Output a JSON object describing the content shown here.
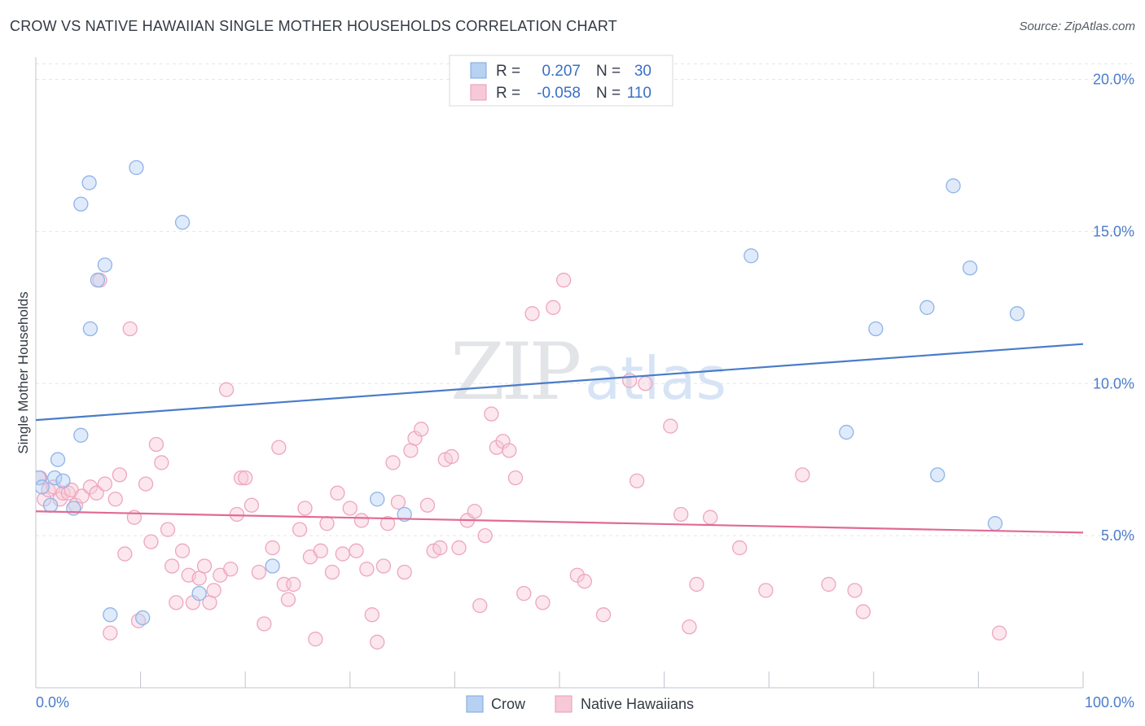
{
  "title": "CROW VS NATIVE HAWAIIAN SINGLE MOTHER HOUSEHOLDS CORRELATION CHART",
  "source": "Source: ZipAtlas.com",
  "watermark": {
    "zip": "ZIP",
    "atlas": "atlas"
  },
  "legend": {
    "rows": [
      {
        "r_label": "R =",
        "r_value": "0.207",
        "n_label": "N =",
        "n_value": "30",
        "color": "#9ec2f0"
      },
      {
        "r_label": "R =",
        "r_value": "-0.058",
        "n_label": "N =",
        "n_value": "110",
        "color": "#f4b6c8"
      }
    ]
  },
  "bottom_legend": [
    {
      "label": "Crow",
      "color": "#9ec2f0"
    },
    {
      "label": "Native Hawaiians",
      "color": "#f4b6c8"
    }
  ],
  "chart_data": {
    "type": "scatter",
    "title": "CROW VS NATIVE HAWAIIAN SINGLE MOTHER HOUSEHOLDS CORRELATION CHART",
    "xlabel": "",
    "ylabel": "Single Mother Households",
    "xlim": [
      0,
      100
    ],
    "ylim": [
      0,
      20
    ],
    "x_tick_labels": [
      "0.0%",
      "100.0%"
    ],
    "y_ticks": [
      5,
      10,
      15,
      20
    ],
    "y_tick_labels": [
      "5.0%",
      "10.0%",
      "15.0%",
      "20.0%"
    ],
    "grid": true,
    "series": [
      {
        "name": "Crow",
        "color": "#4a7cc9",
        "fill": "#b7d1f3",
        "trend": [
          [
            0,
            8.8
          ],
          [
            100,
            11.3
          ]
        ],
        "points": [
          [
            0.3,
            6.9
          ],
          [
            0.6,
            6.6
          ],
          [
            1.4,
            6.0
          ],
          [
            1.8,
            6.9
          ],
          [
            2.1,
            7.5
          ],
          [
            2.6,
            6.8
          ],
          [
            3.6,
            5.9
          ],
          [
            4.3,
            8.3
          ],
          [
            4.3,
            15.9
          ],
          [
            5.1,
            16.6
          ],
          [
            5.2,
            11.8
          ],
          [
            5.9,
            13.4
          ],
          [
            6.6,
            13.9
          ],
          [
            7.1,
            2.4
          ],
          [
            9.6,
            17.1
          ],
          [
            10.2,
            2.3
          ],
          [
            14.0,
            15.3
          ],
          [
            15.6,
            3.1
          ],
          [
            22.6,
            4.0
          ],
          [
            32.6,
            6.2
          ],
          [
            35.2,
            5.7
          ],
          [
            68.3,
            14.2
          ],
          [
            77.4,
            8.4
          ],
          [
            80.2,
            11.8
          ],
          [
            85.1,
            12.5
          ],
          [
            86.1,
            7.0
          ],
          [
            87.6,
            16.5
          ],
          [
            89.2,
            13.8
          ],
          [
            91.6,
            5.4
          ],
          [
            93.7,
            12.3
          ]
        ]
      },
      {
        "name": "Native Hawaiians",
        "color": "#e06a94",
        "fill": "#f7c9d8",
        "trend": [
          [
            0,
            5.8
          ],
          [
            100,
            5.1
          ]
        ],
        "points": [
          [
            0.4,
            6.9
          ],
          [
            0.8,
            6.2
          ],
          [
            1.2,
            6.5
          ],
          [
            1.7,
            6.6
          ],
          [
            2.3,
            6.2
          ],
          [
            2.6,
            6.4
          ],
          [
            3.1,
            6.4
          ],
          [
            3.4,
            6.5
          ],
          [
            3.8,
            6.0
          ],
          [
            4.4,
            6.3
          ],
          [
            5.2,
            6.6
          ],
          [
            5.8,
            6.4
          ],
          [
            6.1,
            13.4
          ],
          [
            6.6,
            6.7
          ],
          [
            7.1,
            1.8
          ],
          [
            7.6,
            6.2
          ],
          [
            8.0,
            7.0
          ],
          [
            8.5,
            4.4
          ],
          [
            9.0,
            11.8
          ],
          [
            9.4,
            5.6
          ],
          [
            9.8,
            2.2
          ],
          [
            10.5,
            6.7
          ],
          [
            11.0,
            4.8
          ],
          [
            11.5,
            8.0
          ],
          [
            12.0,
            7.4
          ],
          [
            12.6,
            5.2
          ],
          [
            13.0,
            4.0
          ],
          [
            13.4,
            2.8
          ],
          [
            14.0,
            4.5
          ],
          [
            14.6,
            3.7
          ],
          [
            15.0,
            2.8
          ],
          [
            15.6,
            3.6
          ],
          [
            16.1,
            4.0
          ],
          [
            16.6,
            2.8
          ],
          [
            17.0,
            3.2
          ],
          [
            17.6,
            3.7
          ],
          [
            18.2,
            9.8
          ],
          [
            18.6,
            3.9
          ],
          [
            19.2,
            5.7
          ],
          [
            19.6,
            6.9
          ],
          [
            20.0,
            6.9
          ],
          [
            20.6,
            6.0
          ],
          [
            21.3,
            3.8
          ],
          [
            21.8,
            2.1
          ],
          [
            22.6,
            4.6
          ],
          [
            23.2,
            7.9
          ],
          [
            23.7,
            3.4
          ],
          [
            24.1,
            2.9
          ],
          [
            24.6,
            3.4
          ],
          [
            25.2,
            5.2
          ],
          [
            25.7,
            5.9
          ],
          [
            26.2,
            4.3
          ],
          [
            26.7,
            1.6
          ],
          [
            27.2,
            4.5
          ],
          [
            27.8,
            5.4
          ],
          [
            28.3,
            3.8
          ],
          [
            28.8,
            6.4
          ],
          [
            29.3,
            4.4
          ],
          [
            30.0,
            5.9
          ],
          [
            30.6,
            4.5
          ],
          [
            31.1,
            5.5
          ],
          [
            31.6,
            3.9
          ],
          [
            32.1,
            2.4
          ],
          [
            32.6,
            1.5
          ],
          [
            33.2,
            4.0
          ],
          [
            33.6,
            5.4
          ],
          [
            34.1,
            7.4
          ],
          [
            34.6,
            6.1
          ],
          [
            35.2,
            3.8
          ],
          [
            35.8,
            7.8
          ],
          [
            36.2,
            8.2
          ],
          [
            36.8,
            8.5
          ],
          [
            37.4,
            6.0
          ],
          [
            38.0,
            4.5
          ],
          [
            38.6,
            4.6
          ],
          [
            39.1,
            7.5
          ],
          [
            39.7,
            7.6
          ],
          [
            40.4,
            4.6
          ],
          [
            41.2,
            5.5
          ],
          [
            41.9,
            5.8
          ],
          [
            42.4,
            2.7
          ],
          [
            42.9,
            5.0
          ],
          [
            43.5,
            9.0
          ],
          [
            44.0,
            7.9
          ],
          [
            44.6,
            8.1
          ],
          [
            45.2,
            7.8
          ],
          [
            45.8,
            6.9
          ],
          [
            46.6,
            3.1
          ],
          [
            47.4,
            12.3
          ],
          [
            48.4,
            2.8
          ],
          [
            49.4,
            12.5
          ],
          [
            50.4,
            13.4
          ],
          [
            51.7,
            3.7
          ],
          [
            52.4,
            3.5
          ],
          [
            54.2,
            2.4
          ],
          [
            56.7,
            10.1
          ],
          [
            57.4,
            6.8
          ],
          [
            58.2,
            10.0
          ],
          [
            60.6,
            8.6
          ],
          [
            61.6,
            5.7
          ],
          [
            62.4,
            2.0
          ],
          [
            63.1,
            3.4
          ],
          [
            64.4,
            5.6
          ],
          [
            67.2,
            4.6
          ],
          [
            69.7,
            3.2
          ],
          [
            73.2,
            7.0
          ],
          [
            75.7,
            3.4
          ],
          [
            78.2,
            3.2
          ],
          [
            79.0,
            2.5
          ],
          [
            92.0,
            1.8
          ]
        ]
      }
    ]
  }
}
